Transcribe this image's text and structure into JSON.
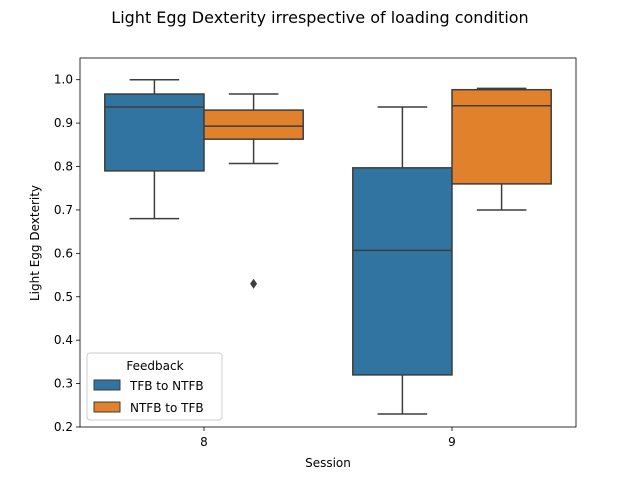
{
  "chart_data": {
    "type": "box",
    "title": "Light Egg Dexterity irrespective of loading condition",
    "xlabel": "Session",
    "ylabel": "Light Egg Dexterity",
    "categories": [
      "8",
      "9"
    ],
    "ylim": [
      0.2,
      1.05
    ],
    "yticks": [
      "0.2",
      "0.3",
      "0.4",
      "0.5",
      "0.6",
      "0.7",
      "0.8",
      "0.9",
      "1.0"
    ],
    "legend": {
      "title": "Feedback",
      "position": "lower-left"
    },
    "series": [
      {
        "name": "TFB to NTFB",
        "color": "#3274a1",
        "boxes": [
          {
            "category": "8",
            "whisker_low": 0.68,
            "q1": 0.79,
            "median": 0.937,
            "q3": 0.967,
            "whisker_high": 1.0,
            "outliers": []
          },
          {
            "category": "9",
            "whisker_low": 0.23,
            "q1": 0.32,
            "median": 0.607,
            "q3": 0.797,
            "whisker_high": 0.937,
            "outliers": []
          }
        ]
      },
      {
        "name": "NTFB to TFB",
        "color": "#e1812c",
        "boxes": [
          {
            "category": "8",
            "whisker_low": 0.807,
            "q1": 0.863,
            "median": 0.893,
            "q3": 0.93,
            "whisker_high": 0.967,
            "outliers": [
              0.53
            ]
          },
          {
            "category": "9",
            "whisker_low": 0.7,
            "q1": 0.76,
            "median": 0.94,
            "q3": 0.977,
            "whisker_high": 0.98,
            "outliers": []
          }
        ]
      }
    ]
  }
}
